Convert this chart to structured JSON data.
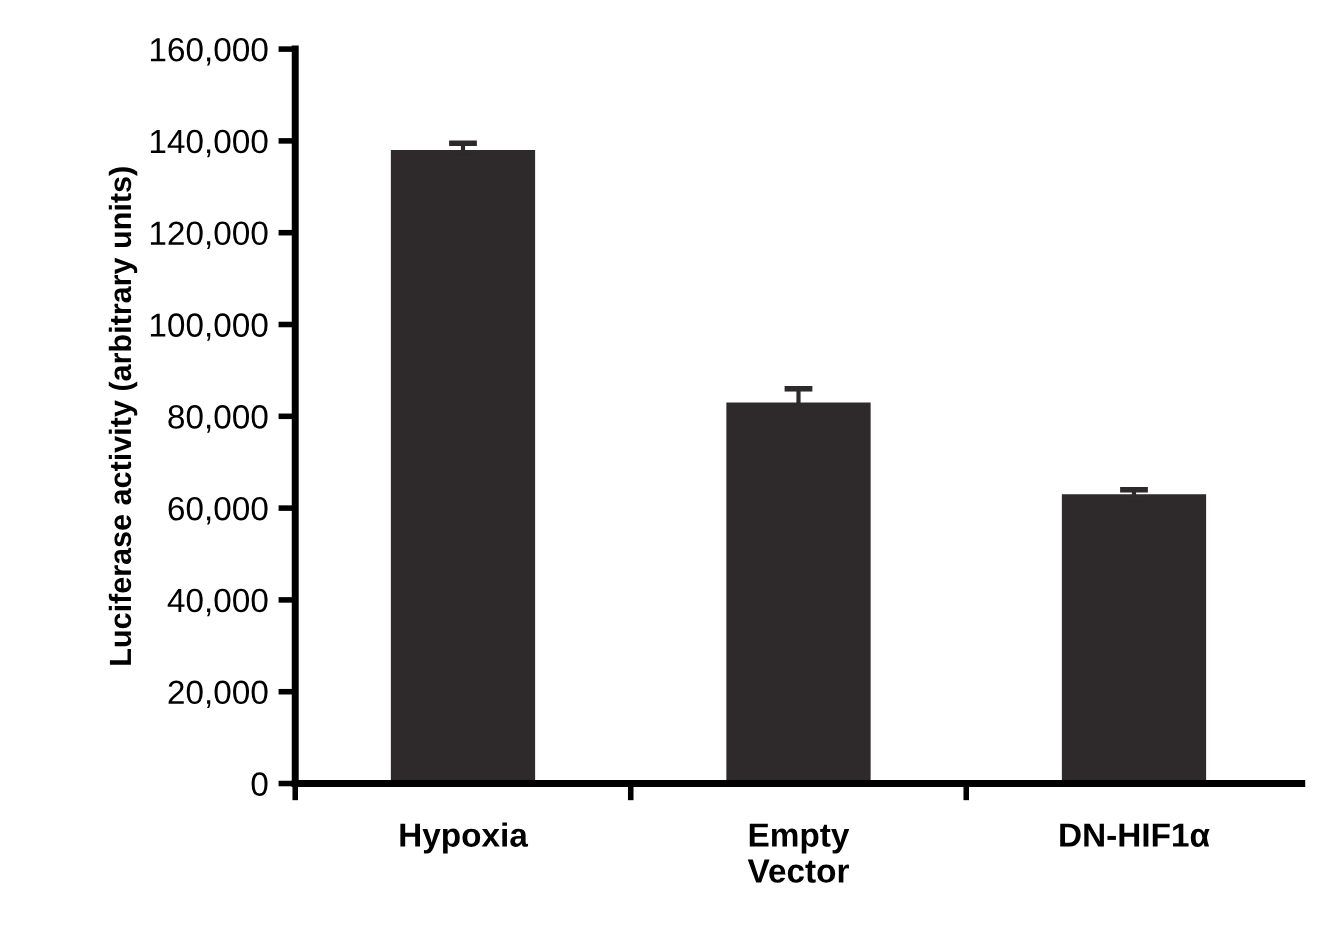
{
  "chart_data": {
    "type": "bar",
    "ylabel": "Luciferase activity (arbitrary units)",
    "categories": [
      "Hypoxia",
      "Empty\nVector",
      "DN-HIF1α"
    ],
    "values": [
      138000,
      83000,
      63000
    ],
    "errors": [
      1500,
      3000,
      1000
    ],
    "color": "#2e292a",
    "ylim": [
      0,
      160000
    ],
    "yticks": [
      {
        "value": 0,
        "label": "0"
      },
      {
        "value": 20000,
        "label": "20,000"
      },
      {
        "value": 40000,
        "label": "40,000"
      },
      {
        "value": 60000,
        "label": "60,000"
      },
      {
        "value": 80000,
        "label": "80,000"
      },
      {
        "value": 100000,
        "label": "100,000"
      },
      {
        "value": 120000,
        "label": "120,000"
      },
      {
        "value": 140000,
        "label": "140,000"
      },
      {
        "value": 160000,
        "label": "160,000"
      }
    ],
    "grid": false,
    "legend": false
  }
}
